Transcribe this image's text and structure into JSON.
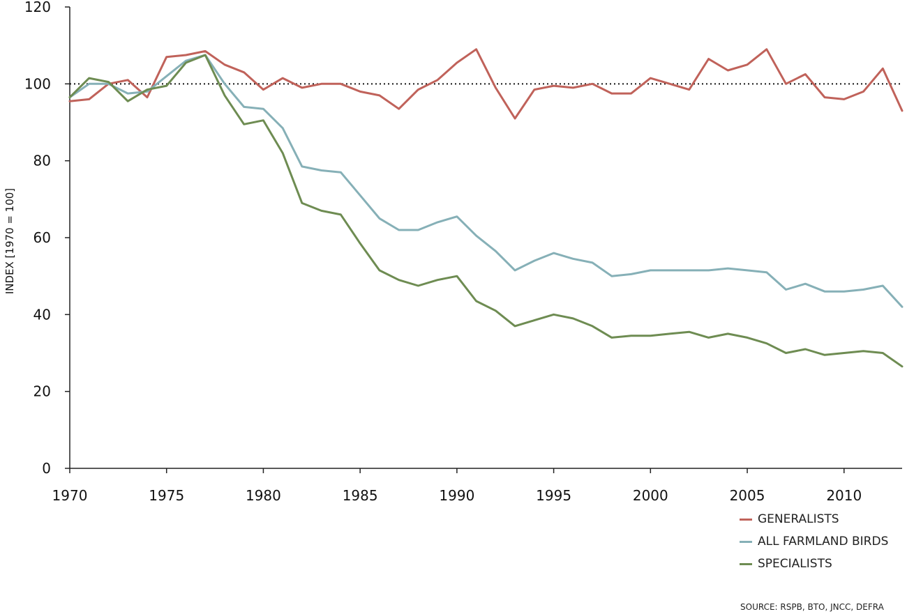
{
  "chart_data": {
    "type": "line",
    "title": "",
    "xlabel": "",
    "ylabel": "INDEX [1970 = 100]",
    "xlim": [
      1970,
      2013
    ],
    "ylim": [
      0,
      120
    ],
    "x_ticks": [
      "1970",
      "1975",
      "1980",
      "1985",
      "1990",
      "1995",
      "2000",
      "2005",
      "2010"
    ],
    "y_ticks": [
      "0",
      "20",
      "40",
      "60",
      "80",
      "100",
      "120"
    ],
    "reference_line": 100,
    "grid": false,
    "legend_position": "bottom-right",
    "x": [
      1970,
      1971,
      1972,
      1973,
      1974,
      1975,
      1976,
      1977,
      1978,
      1979,
      1980,
      1981,
      1982,
      1983,
      1984,
      1985,
      1986,
      1987,
      1988,
      1989,
      1990,
      1991,
      1992,
      1993,
      1994,
      1995,
      1996,
      1997,
      1998,
      1999,
      2000,
      2001,
      2002,
      2003,
      2004,
      2005,
      2006,
      2007,
      2008,
      2009,
      2010,
      2011,
      2012,
      2013
    ],
    "series": [
      {
        "name": "GENERALISTS",
        "color": "#c0625a",
        "values": [
          95.5,
          96,
          100,
          101,
          96.5,
          107,
          107.5,
          108.5,
          105,
          103,
          98.5,
          101.5,
          99,
          100,
          100,
          98,
          97,
          93.5,
          98.5,
          101,
          105.5,
          109,
          99,
          91,
          98.5,
          99.5,
          99,
          100,
          97.5,
          97.5,
          101.5,
          100,
          98.5,
          106.5,
          103.5,
          105,
          109,
          100,
          102.5,
          96.5,
          96,
          98,
          104,
          93
        ]
      },
      {
        "name": "ALL FARMLAND BIRDS",
        "color": "#86b0b7",
        "values": [
          96.5,
          100,
          100,
          97.5,
          98,
          102,
          106,
          107.5,
          100,
          94,
          93.5,
          88.5,
          78.5,
          77.5,
          77,
          71,
          65,
          62,
          62,
          64,
          65.5,
          60.5,
          56.5,
          51.5,
          54,
          56,
          54.5,
          53.5,
          50,
          50.5,
          51.5,
          51.5,
          51.5,
          51.5,
          52,
          51.5,
          51,
          46.5,
          48,
          46,
          46,
          46.5,
          47.5,
          42
        ]
      },
      {
        "name": "SPECIALISTS",
        "color": "#6e8c52",
        "values": [
          96.5,
          101.5,
          100.5,
          95.5,
          98.5,
          99.5,
          105.5,
          107.5,
          97,
          89.5,
          90.5,
          82,
          69,
          67,
          66,
          58.5,
          51.5,
          49,
          47.5,
          49,
          50,
          43.5,
          41,
          37,
          38.5,
          40,
          39,
          37,
          34,
          34.5,
          34.5,
          35,
          35.5,
          34,
          35,
          34,
          32.5,
          30,
          31,
          29.5,
          30,
          30.5,
          30,
          26.5
        ]
      }
    ]
  },
  "source": "SOURCE: RSPB, BTO, JNCC, DEFRA"
}
